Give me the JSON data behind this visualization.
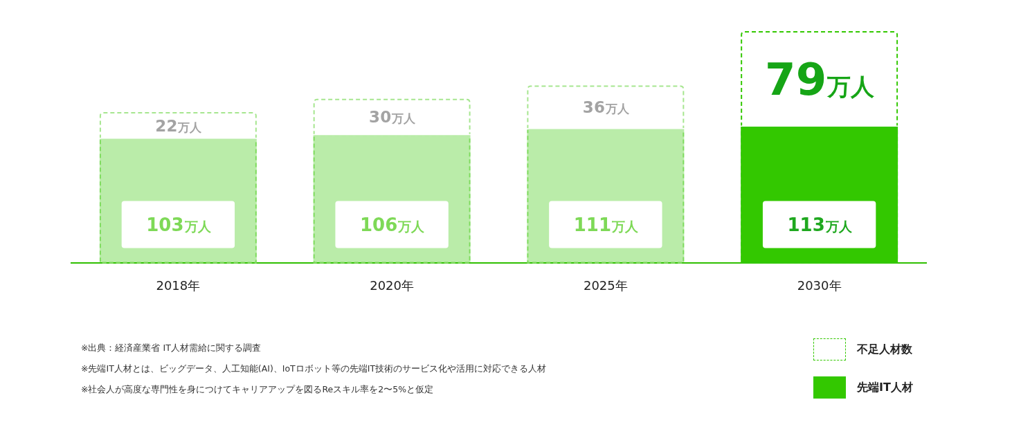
{
  "chart_data": {
    "type": "bar",
    "categories": [
      "2018年",
      "2020年",
      "2025年",
      "2030年"
    ],
    "stacked": true,
    "series": [
      {
        "name": "先端IT人材",
        "color": "#33c800",
        "colors": [
          "#b5f0a0",
          "#b5f0a0",
          "#b5f0a0",
          "#33c800"
        ],
        "values": [
          103,
          106,
          111,
          113
        ],
        "value_labels": [
          "103万人",
          "106万人",
          "111万人",
          "113万人"
        ]
      },
      {
        "name": "不足人材数",
        "color": "#33c800",
        "colors": [
          "#a6e68f",
          "#a6e68f",
          "#a6e68f",
          "#33c800"
        ],
        "line_style": "dashed",
        "values": [
          22,
          30,
          36,
          79
        ],
        "value_labels": [
          "22万人",
          "30万人",
          "36万人",
          "79万人"
        ]
      }
    ],
    "legend": "bottom right",
    "tick_labels": "x",
    "grid": false,
    "annotations": [
      "※出典：経済産業省 IT人材需給に関する調査",
      "※先端IT人材とは、ビッグデータ、人工知能(AI)、IoTロボット等の先端IT技術のサービス化や活用に対応できる人材",
      "※社会人が高度な専門性を身につけてキャリアアップを図るReスキル率を2〜5%と仮定"
    ]
  }
}
